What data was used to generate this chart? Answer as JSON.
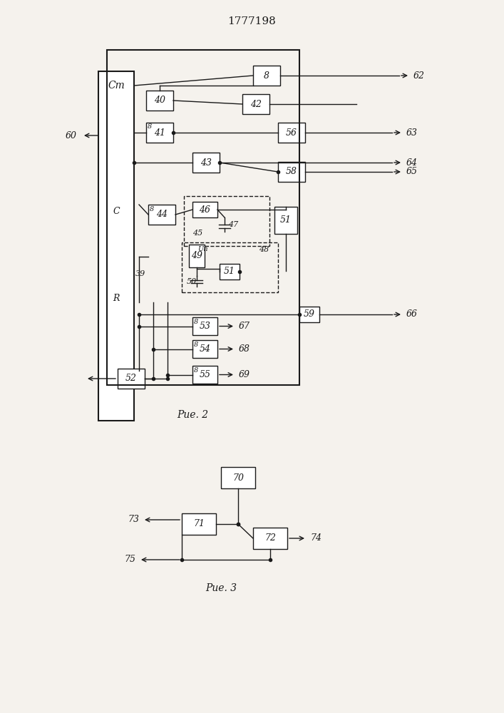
{
  "title": "1777198",
  "fig2_label": "Рие. 2",
  "fig3_label": "Рие. 3",
  "bg_color": "#f5f2ed",
  "line_color": "#1a1a1a",
  "box_color": "#ffffff",
  "font_size": 9,
  "title_font_size": 11
}
